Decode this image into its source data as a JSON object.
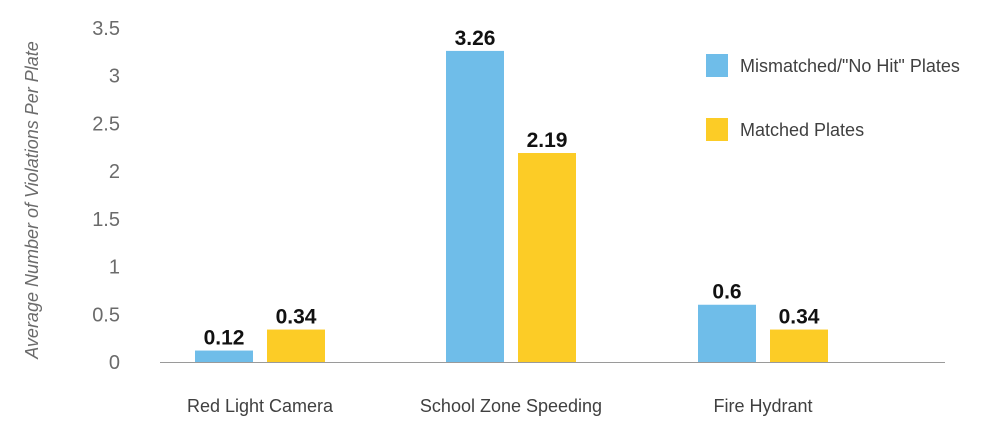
{
  "chart_data": {
    "type": "bar",
    "title": "",
    "xlabel": "",
    "ylabel": "Average Number of Violations Per Plate",
    "ylim": [
      0,
      3.5
    ],
    "yticks": [
      "0",
      "0.5",
      "1",
      "1.5",
      "2",
      "2.5",
      "3",
      "3.5"
    ],
    "grid": false,
    "legend_position": "top-right",
    "categories": [
      "Red Light Camera",
      "School Zone Speeding",
      "Fire Hydrant"
    ],
    "series": [
      {
        "name": "Mismatched/\"No Hit\" Plates",
        "color": "#6fbde9",
        "values": [
          0.12,
          3.26,
          0.6
        ],
        "labels": [
          "0.12",
          "3.26",
          "0.6"
        ]
      },
      {
        "name": "Matched Plates",
        "color": "#fccc26",
        "values": [
          0.34,
          2.19,
          0.34
        ],
        "labels": [
          "0.34",
          "2.19",
          "0.34"
        ]
      }
    ],
    "axis_color": "#9a9a9a"
  }
}
